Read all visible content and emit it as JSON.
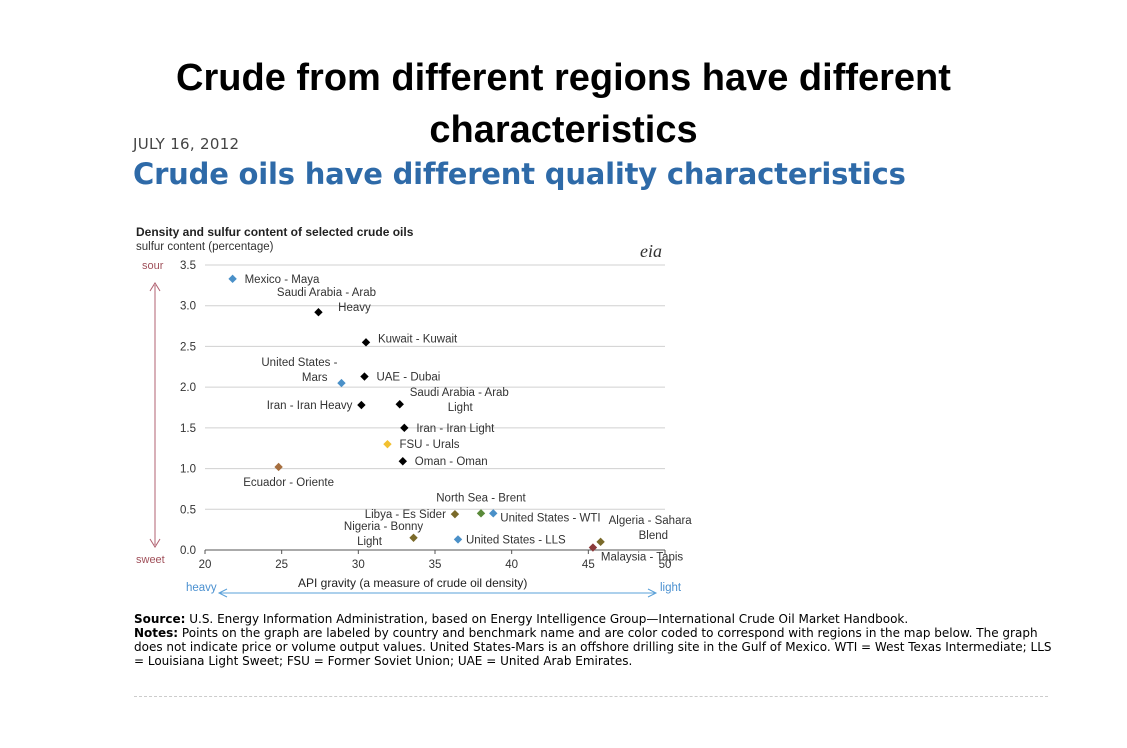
{
  "page": {
    "title": "Crude from different regions have different characteristics",
    "date": "JULY 16, 2012",
    "subtitle": "Crude oils have different quality characteristics"
  },
  "chart_data": {
    "type": "scatter",
    "title": "Density and sulfur content of selected crude oils",
    "ylabel": "sulfur content (percentage)",
    "xlabel": "API gravity (a measure of crude oil density)",
    "logo": "eia",
    "xlim": [
      20,
      50
    ],
    "ylim": [
      0,
      3.5
    ],
    "xticks": [
      20,
      25,
      30,
      35,
      40,
      45,
      50
    ],
    "yticks": [
      0.0,
      0.5,
      1.0,
      1.5,
      2.0,
      2.5,
      3.0,
      3.5
    ],
    "grid": "horizontal",
    "y_arrow_labels": {
      "top": "sour",
      "bottom": "sweet"
    },
    "x_arrow_labels": {
      "left": "heavy",
      "right": "light"
    },
    "colors": {
      "black": "#000000",
      "blue": "#4a90c8",
      "yellow": "#f2c030",
      "brown": "#a66e3e",
      "green": "#5a8a3a",
      "olive": "#7a6a2a",
      "darkred": "#8b3a3a",
      "axis_label_red": "#a0505a",
      "arrow_red": "#b06070",
      "arrow_blue": "#5aa0d8"
    },
    "points": [
      {
        "label": "Mexico - Maya",
        "x": 21.8,
        "y": 3.33,
        "color": "#4a90c8"
      },
      {
        "label": "Saudi Arabia - Arab Heavy",
        "x": 27.4,
        "y": 2.92,
        "color": "#000000"
      },
      {
        "label": "Kuwait - Kuwait",
        "x": 30.5,
        "y": 2.55,
        "color": "#000000"
      },
      {
        "label": "United States - Mars",
        "x": 28.9,
        "y": 2.05,
        "color": "#4a90c8"
      },
      {
        "label": "UAE - Dubai",
        "x": 30.4,
        "y": 2.13,
        "color": "#000000"
      },
      {
        "label": "Iran - Iran Heavy",
        "x": 30.2,
        "y": 1.78,
        "color": "#000000"
      },
      {
        "label": "Saudi Arabia - Arab Light",
        "x": 32.7,
        "y": 1.79,
        "color": "#000000"
      },
      {
        "label": "Iran - Iran Light",
        "x": 33.0,
        "y": 1.5,
        "color": "#000000"
      },
      {
        "label": "FSU - Urals",
        "x": 31.9,
        "y": 1.3,
        "color": "#f2c030"
      },
      {
        "label": "Oman - Oman",
        "x": 32.9,
        "y": 1.09,
        "color": "#000000"
      },
      {
        "label": "Ecuador - Oriente",
        "x": 24.8,
        "y": 1.02,
        "color": "#a66e3e"
      },
      {
        "label": "North Sea - Brent",
        "x": 38.0,
        "y": 0.45,
        "color": "#5a8a3a"
      },
      {
        "label": "Libya - Es Sider",
        "x": 36.3,
        "y": 0.44,
        "color": "#7a6a2a"
      },
      {
        "label": "United States - WTI",
        "x": 38.8,
        "y": 0.45,
        "color": "#4a90c8"
      },
      {
        "label": "Nigeria - Bonny Light",
        "x": 33.6,
        "y": 0.15,
        "color": "#7a6a2a"
      },
      {
        "label": "United States - LLS",
        "x": 36.5,
        "y": 0.13,
        "color": "#4a90c8"
      },
      {
        "label": "Algeria - Sahara Blend",
        "x": 45.8,
        "y": 0.1,
        "color": "#7a6a2a"
      },
      {
        "label": "Malaysia - Tapis",
        "x": 45.3,
        "y": 0.03,
        "color": "#8b3a3a"
      }
    ]
  },
  "notes": {
    "source_label": "Source:",
    "source_text": " U.S. Energy Information Administration, based on Energy Intelligence Group—International Crude Oil Market Handbook.",
    "notes_label": "Notes:",
    "notes_text": " Points on the graph are labeled by country and benchmark name and are color coded to correspond with regions in the map below. The graph does not indicate price or volume output values. United States-Mars is an offshore drilling site in the Gulf of Mexico. WTI = West Texas Intermediate; LLS = Louisiana Light Sweet; FSU = Former Soviet Union; UAE = United Arab Emirates."
  }
}
